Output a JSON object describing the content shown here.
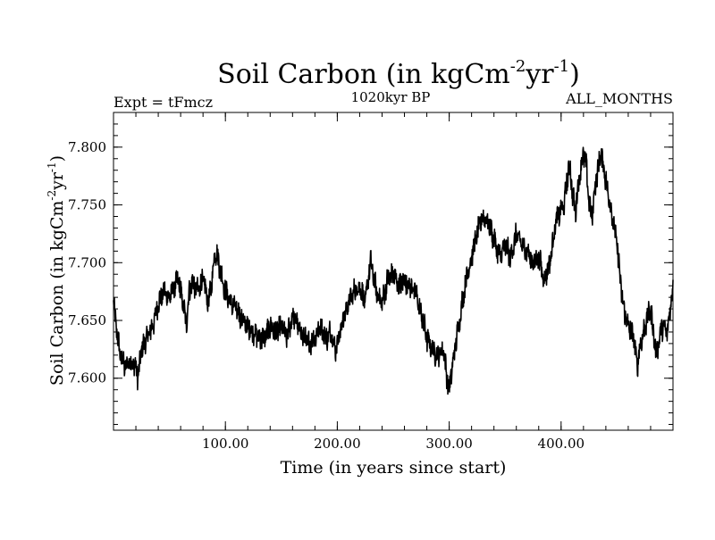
{
  "chart_data": {
    "type": "line",
    "title": {
      "main": "Soil Carbon (in kgCm",
      "sup1": "-2",
      "mid": "yr",
      "sup2": "-1",
      "end": ")"
    },
    "subtitle_left": "Expt = tFmcz",
    "subtitle_center": "1020kyr BP",
    "subtitle_right": "ALL_MONTHS",
    "xlabel": "Time (in years since start)",
    "ylabel": {
      "main": "Soil Carbon (in kgCm",
      "sup1": "-2",
      "mid": "yr",
      "sup2": "-1",
      "end": ")"
    },
    "xlim": [
      0,
      500
    ],
    "ylim": [
      7.555,
      7.83
    ],
    "xticks": [
      100,
      200,
      300,
      400
    ],
    "xtick_labels": [
      "100.00",
      "200.00",
      "300.00",
      "400.00"
    ],
    "yticks": [
      7.6,
      7.65,
      7.7,
      7.75,
      7.8
    ],
    "ytick_labels": [
      "7.600",
      "7.650",
      "7.700",
      "7.750",
      "7.800"
    ],
    "line_color": "#000000",
    "series": [
      {
        "name": "Soil Carbon",
        "anchors_x": [
          0,
          3,
          6,
          10,
          15,
          20,
          22,
          25,
          30,
          35,
          40,
          45,
          50,
          55,
          58,
          60,
          63,
          65,
          67,
          70,
          75,
          80,
          85,
          88,
          90,
          92,
          95,
          100,
          105,
          110,
          115,
          120,
          125,
          130,
          135,
          140,
          145,
          150,
          155,
          160,
          165,
          170,
          175,
          180,
          185,
          190,
          195,
          198,
          200,
          205,
          210,
          215,
          220,
          225,
          228,
          230,
          232,
          235,
          240,
          245,
          250,
          255,
          260,
          265,
          270,
          275,
          280,
          285,
          290,
          295,
          298,
          300,
          302,
          305,
          310,
          315,
          320,
          325,
          330,
          335,
          340,
          345,
          350,
          355,
          360,
          365,
          370,
          375,
          380,
          385,
          390,
          395,
          400,
          403,
          405,
          408,
          410,
          413,
          415,
          418,
          420,
          423,
          425,
          428,
          430,
          433,
          435,
          438,
          440,
          445,
          450,
          455,
          460,
          465,
          468,
          470,
          475,
          480,
          485,
          490,
          495,
          500
        ],
        "anchors_y": [
          7.665,
          7.64,
          7.62,
          7.61,
          7.615,
          7.61,
          7.6,
          7.625,
          7.635,
          7.645,
          7.665,
          7.675,
          7.67,
          7.68,
          7.685,
          7.675,
          7.66,
          7.645,
          7.67,
          7.685,
          7.675,
          7.685,
          7.665,
          7.685,
          7.705,
          7.71,
          7.695,
          7.675,
          7.665,
          7.66,
          7.65,
          7.645,
          7.64,
          7.635,
          7.635,
          7.645,
          7.64,
          7.645,
          7.635,
          7.655,
          7.645,
          7.635,
          7.63,
          7.635,
          7.645,
          7.635,
          7.64,
          7.625,
          7.63,
          7.65,
          7.665,
          7.675,
          7.68,
          7.665,
          7.69,
          7.7,
          7.69,
          7.675,
          7.665,
          7.685,
          7.69,
          7.68,
          7.685,
          7.68,
          7.675,
          7.655,
          7.635,
          7.625,
          7.62,
          7.625,
          7.6,
          7.59,
          7.605,
          7.625,
          7.655,
          7.685,
          7.705,
          7.725,
          7.74,
          7.735,
          7.72,
          7.705,
          7.715,
          7.705,
          7.725,
          7.715,
          7.71,
          7.7,
          7.705,
          7.685,
          7.7,
          7.735,
          7.745,
          7.75,
          7.77,
          7.785,
          7.76,
          7.745,
          7.765,
          7.785,
          7.795,
          7.78,
          7.75,
          7.74,
          7.765,
          7.78,
          7.795,
          7.785,
          7.77,
          7.745,
          7.715,
          7.665,
          7.645,
          7.635,
          7.61,
          7.625,
          7.645,
          7.66,
          7.62,
          7.645,
          7.64,
          7.68
        ]
      }
    ]
  }
}
